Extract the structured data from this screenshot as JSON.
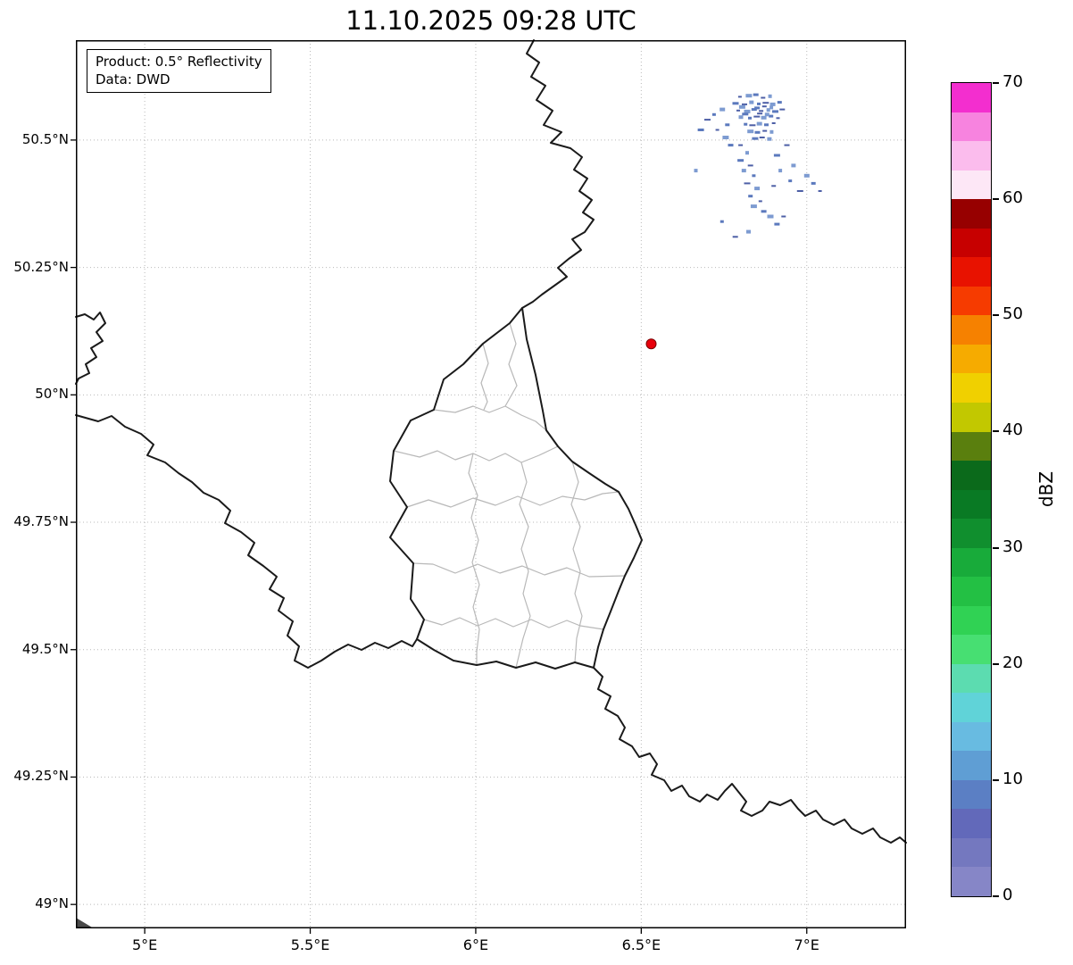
{
  "title": "11.10.2025 09:28 UTC",
  "annotation": {
    "line1": "Product: 0.5° Reflectivity",
    "line2": "Data: DWD"
  },
  "axes": {
    "xticks": [
      {
        "label": "5°E",
        "lon": 5.0
      },
      {
        "label": "5.5°E",
        "lon": 5.5
      },
      {
        "label": "6°E",
        "lon": 6.0
      },
      {
        "label": "6.5°E",
        "lon": 6.5
      },
      {
        "label": "7°E",
        "lon": 7.0
      }
    ],
    "yticks": [
      {
        "label": "50.5°N",
        "lat": 50.5
      },
      {
        "label": "50.25°N",
        "lat": 50.25
      },
      {
        "label": "50°N",
        "lat": 50.0
      },
      {
        "label": "49.75°N",
        "lat": 49.75
      },
      {
        "label": "49.5°N",
        "lat": 49.5
      },
      {
        "label": "49.25°N",
        "lat": 49.25
      },
      {
        "label": "49°N",
        "lat": 49.0
      }
    ]
  },
  "colorbar": {
    "label": "dBZ",
    "ticks": [
      0,
      10,
      20,
      30,
      40,
      50,
      60,
      70
    ],
    "value_min": 0,
    "value_max": 70,
    "colors_bottom_to_top": [
      "#8686c7",
      "#7478bf",
      "#6269ba",
      "#5b7fc4",
      "#5f9ed4",
      "#68bbe1",
      "#60d3d8",
      "#5cdcb0",
      "#47df72",
      "#30d254",
      "#23c044",
      "#18ab3a",
      "#108f2e",
      "#097a24",
      "#0b6a1b",
      "#5a7f0e",
      "#c2c800",
      "#f0d000",
      "#f6ab00",
      "#f68100",
      "#f63b00",
      "#e81200",
      "#c70000",
      "#970000",
      "#fde7f6",
      "#fbbced",
      "#f783df",
      "#f32ecf"
    ]
  },
  "chart_data": {
    "type": "map-radar",
    "title": "11.10.2025 09:28 UTC",
    "product": "0.5° Reflectivity",
    "data_source": "DWD",
    "units": "dBZ",
    "xlim": [
      4.792,
      7.3
    ],
    "ylim": [
      48.953,
      50.696
    ],
    "grid": true,
    "radar_marker": {
      "lon": 6.53,
      "lat": 50.1,
      "color": "#e8000b",
      "edge": "#7a0000"
    },
    "echo_palette": [
      "#4d5fa6",
      "#5b79bd",
      "#7d9bd1"
    ],
    "echo_dbz_range": [
      4,
      12
    ],
    "echo_points": [
      [
        6.798,
        50.585
      ],
      [
        6.825,
        50.587
      ],
      [
        6.846,
        50.589
      ],
      [
        6.868,
        50.583
      ],
      [
        6.889,
        50.586
      ],
      [
        6.785,
        50.572
      ],
      [
        6.812,
        50.57
      ],
      [
        6.833,
        50.574
      ],
      [
        6.855,
        50.571
      ],
      [
        6.876,
        50.573
      ],
      [
        6.897,
        50.57
      ],
      [
        6.918,
        50.574
      ],
      [
        6.793,
        50.558
      ],
      [
        6.82,
        50.556
      ],
      [
        6.841,
        50.56
      ],
      [
        6.862,
        50.557
      ],
      [
        6.884,
        50.559
      ],
      [
        6.905,
        50.556
      ],
      [
        6.926,
        50.56
      ],
      [
        6.801,
        50.545
      ],
      [
        6.828,
        50.543
      ],
      [
        6.849,
        50.546
      ],
      [
        6.87,
        50.544
      ],
      [
        6.892,
        50.547
      ],
      [
        6.913,
        50.543
      ],
      [
        6.805,
        50.565
      ],
      [
        6.85,
        50.563
      ],
      [
        6.872,
        50.566
      ],
      [
        6.893,
        50.564
      ],
      [
        6.814,
        50.551
      ],
      [
        6.858,
        50.552
      ],
      [
        6.88,
        50.55
      ],
      [
        6.815,
        50.531
      ],
      [
        6.836,
        50.529
      ],
      [
        6.857,
        50.532
      ],
      [
        6.878,
        50.53
      ],
      [
        6.9,
        50.533
      ],
      [
        6.83,
        50.517
      ],
      [
        6.851,
        50.515
      ],
      [
        6.873,
        50.518
      ],
      [
        6.894,
        50.516
      ],
      [
        6.844,
        50.503
      ],
      [
        6.865,
        50.505
      ],
      [
        6.887,
        50.502
      ],
      [
        6.72,
        50.55
      ],
      [
        6.7,
        50.54
      ],
      [
        6.745,
        50.56
      ],
      [
        6.76,
        50.53
      ],
      [
        6.73,
        50.52
      ],
      [
        6.755,
        50.505
      ],
      [
        6.77,
        50.49
      ],
      [
        6.8,
        50.49
      ],
      [
        6.82,
        50.475
      ],
      [
        6.8,
        50.46
      ],
      [
        6.83,
        50.45
      ],
      [
        6.81,
        50.44
      ],
      [
        6.84,
        50.43
      ],
      [
        6.82,
        50.415
      ],
      [
        6.85,
        50.405
      ],
      [
        6.83,
        50.39
      ],
      [
        6.86,
        50.38
      ],
      [
        6.84,
        50.37
      ],
      [
        6.87,
        50.36
      ],
      [
        6.9,
        50.41
      ],
      [
        6.92,
        50.44
      ],
      [
        6.91,
        50.47
      ],
      [
        6.94,
        50.49
      ],
      [
        6.96,
        50.45
      ],
      [
        6.95,
        50.42
      ],
      [
        6.98,
        50.4
      ],
      [
        7.0,
        50.43
      ],
      [
        7.02,
        50.415
      ],
      [
        7.04,
        50.4
      ],
      [
        6.89,
        50.35
      ],
      [
        6.91,
        50.335
      ],
      [
        6.93,
        50.35
      ],
      [
        6.665,
        50.44
      ],
      [
        6.68,
        50.52
      ],
      [
        6.784,
        50.31
      ],
      [
        6.824,
        50.32
      ],
      [
        6.744,
        50.34
      ]
    ]
  }
}
